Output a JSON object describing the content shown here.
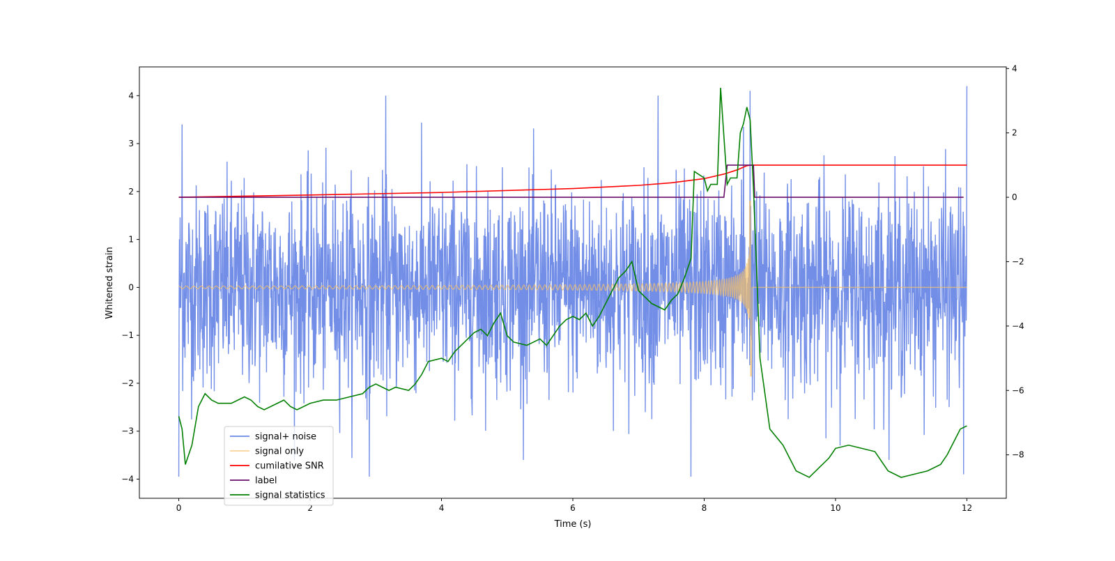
{
  "chart_data": {
    "type": "line",
    "xlabel": "Time (s)",
    "ylabel": "Whitened strain",
    "xlim": [
      -0.6,
      12.6
    ],
    "ylim": [
      -4.4,
      4.6
    ],
    "y2lim": [
      -9.35,
      4.05
    ],
    "x_ticks": [
      0,
      2,
      4,
      6,
      8,
      10,
      12
    ],
    "x_tick_labels": [
      "0",
      "2",
      "4",
      "6",
      "8",
      "10",
      "12"
    ],
    "y_ticks": [
      -4,
      -3,
      -2,
      -1,
      0,
      1,
      2,
      3,
      4
    ],
    "y_tick_labels": [
      "−4",
      "−3",
      "−2",
      "−1",
      "0",
      "1",
      "2",
      "3",
      "4"
    ],
    "y2_ticks": [
      -8,
      -6,
      -4,
      -2,
      0,
      2,
      4
    ],
    "y2_tick_labels": [
      "−8",
      "−6",
      "−4",
      "−2",
      "0",
      "2",
      "4"
    ],
    "legend_position": "lower-left",
    "series": [
      {
        "name": "signal+ noise",
        "color": "#6a88e6",
        "axis": "left",
        "description": "whitened noise with amplitude roughly ±3.5, sampled over 0–12 s",
        "x_range": [
          0,
          12
        ],
        "noise_sigma": 1.05,
        "peak_spikes": [
          [
            0.05,
            3.4
          ],
          [
            3.15,
            4.0
          ],
          [
            7.3,
            4.0
          ],
          [
            8.6,
            3.35
          ],
          [
            8.7,
            4.1
          ],
          [
            12.0,
            4.2
          ],
          [
            2.9,
            -3.95
          ],
          [
            7.8,
            -3.95
          ],
          [
            11.95,
            -3.9
          ],
          [
            0.0,
            -3.95
          ]
        ]
      },
      {
        "name": "signal only",
        "color": "#f5c06a",
        "axis": "left",
        "description": "chirp waveform growing toward merger at ~8.72 s",
        "t_start": 0,
        "t_merger": 8.72,
        "t_end": 12,
        "peak_amplitude": [
          1.8,
          -1.85
        ]
      },
      {
        "name": "cumilative SNR",
        "color": "#ff0000",
        "axis": "right",
        "points": [
          [
            0,
            0
          ],
          [
            2,
            0.07
          ],
          [
            4,
            0.15
          ],
          [
            6,
            0.27
          ],
          [
            7,
            0.37
          ],
          [
            7.5,
            0.45
          ],
          [
            8,
            0.58
          ],
          [
            8.3,
            0.72
          ],
          [
            8.5,
            0.85
          ],
          [
            8.65,
            0.98
          ],
          [
            8.72,
            1.0
          ],
          [
            12,
            1.0
          ]
        ]
      },
      {
        "name": "label",
        "color": "#6a0d6a",
        "axis": "right",
        "points": [
          [
            0,
            0
          ],
          [
            8.3,
            0
          ],
          [
            8.35,
            1.0
          ],
          [
            8.75,
            1.0
          ],
          [
            8.77,
            0
          ],
          [
            11.95,
            0
          ]
        ]
      },
      {
        "name": "signal statistics",
        "color": "#007f00",
        "axis": "right",
        "points": [
          [
            0.0,
            -6.8
          ],
          [
            0.05,
            -7.2
          ],
          [
            0.1,
            -8.3
          ],
          [
            0.2,
            -7.7
          ],
          [
            0.3,
            -6.5
          ],
          [
            0.4,
            -6.1
          ],
          [
            0.5,
            -6.3
          ],
          [
            0.6,
            -6.4
          ],
          [
            0.8,
            -6.4
          ],
          [
            0.9,
            -6.3
          ],
          [
            1.0,
            -6.2
          ],
          [
            1.1,
            -6.3
          ],
          [
            1.2,
            -6.5
          ],
          [
            1.3,
            -6.6
          ],
          [
            1.5,
            -6.4
          ],
          [
            1.6,
            -6.3
          ],
          [
            1.7,
            -6.5
          ],
          [
            1.8,
            -6.6
          ],
          [
            2.0,
            -6.4
          ],
          [
            2.2,
            -6.3
          ],
          [
            2.4,
            -6.3
          ],
          [
            2.6,
            -6.2
          ],
          [
            2.8,
            -6.1
          ],
          [
            2.9,
            -5.9
          ],
          [
            3.0,
            -5.8
          ],
          [
            3.1,
            -5.9
          ],
          [
            3.2,
            -6.0
          ],
          [
            3.3,
            -5.9
          ],
          [
            3.5,
            -6.0
          ],
          [
            3.6,
            -5.8
          ],
          [
            3.7,
            -5.5
          ],
          [
            3.8,
            -5.1
          ],
          [
            4.0,
            -5.0
          ],
          [
            4.1,
            -5.1
          ],
          [
            4.2,
            -4.8
          ],
          [
            4.3,
            -4.6
          ],
          [
            4.5,
            -4.2
          ],
          [
            4.6,
            -4.1
          ],
          [
            4.7,
            -4.3
          ],
          [
            4.8,
            -3.9
          ],
          [
            4.9,
            -3.6
          ],
          [
            5.0,
            -4.3
          ],
          [
            5.1,
            -4.5
          ],
          [
            5.3,
            -4.6
          ],
          [
            5.5,
            -4.4
          ],
          [
            5.6,
            -4.6
          ],
          [
            5.7,
            -4.3
          ],
          [
            5.8,
            -4.0
          ],
          [
            5.9,
            -3.8
          ],
          [
            6.0,
            -3.7
          ],
          [
            6.1,
            -3.8
          ],
          [
            6.2,
            -3.6
          ],
          [
            6.3,
            -4.0
          ],
          [
            6.4,
            -3.7
          ],
          [
            6.5,
            -3.3
          ],
          [
            6.6,
            -2.9
          ],
          [
            6.7,
            -2.5
          ],
          [
            6.8,
            -2.3
          ],
          [
            6.9,
            -2.0
          ],
          [
            7.0,
            -2.9
          ],
          [
            7.2,
            -3.3
          ],
          [
            7.4,
            -3.5
          ],
          [
            7.5,
            -3.2
          ],
          [
            7.6,
            -3.0
          ],
          [
            7.7,
            -2.5
          ],
          [
            7.8,
            -1.9
          ],
          [
            7.85,
            0.8
          ],
          [
            8.0,
            0.6
          ],
          [
            8.05,
            0.2
          ],
          [
            8.1,
            0.4
          ],
          [
            8.2,
            0.4
          ],
          [
            8.25,
            3.4
          ],
          [
            8.35,
            0.4
          ],
          [
            8.4,
            0.6
          ],
          [
            8.5,
            0.6
          ],
          [
            8.55,
            2.0
          ],
          [
            8.6,
            2.3
          ],
          [
            8.65,
            2.8
          ],
          [
            8.7,
            2.4
          ],
          [
            8.75,
            0.3
          ],
          [
            8.85,
            -5.0
          ],
          [
            9.0,
            -7.2
          ],
          [
            9.2,
            -7.7
          ],
          [
            9.3,
            -8.1
          ],
          [
            9.4,
            -8.5
          ],
          [
            9.6,
            -8.7
          ],
          [
            9.7,
            -8.5
          ],
          [
            9.9,
            -8.1
          ],
          [
            10.0,
            -7.8
          ],
          [
            10.2,
            -7.7
          ],
          [
            10.4,
            -7.8
          ],
          [
            10.6,
            -7.9
          ],
          [
            10.8,
            -8.5
          ],
          [
            11.0,
            -8.7
          ],
          [
            11.2,
            -8.6
          ],
          [
            11.4,
            -8.5
          ],
          [
            11.6,
            -8.3
          ],
          [
            11.7,
            -8.0
          ],
          [
            11.8,
            -7.6
          ],
          [
            11.9,
            -7.2
          ],
          [
            12.0,
            -7.1
          ]
        ]
      }
    ]
  }
}
